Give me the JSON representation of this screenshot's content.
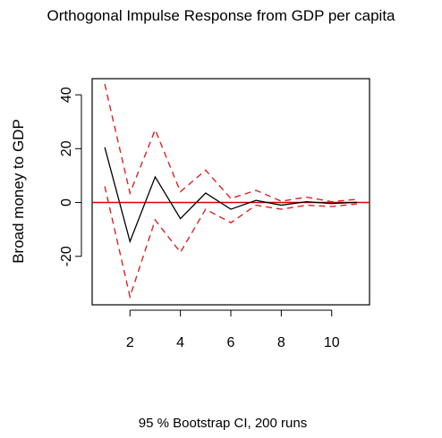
{
  "chart_data": {
    "type": "line",
    "title": "Orthogonal Impulse Response from GDP per capita",
    "ylabel": "Broad money to GDP",
    "xlabel": "",
    "subtitle": "95 % Bootstrap CI,  200 runs",
    "x": [
      1,
      2,
      3,
      4,
      5,
      6,
      7,
      8,
      9,
      10,
      11
    ],
    "xlim": [
      0.5,
      11.5
    ],
    "ylim": [
      -38,
      46
    ],
    "xticks": [
      2,
      4,
      6,
      8,
      10
    ],
    "yticks": [
      -20,
      0,
      20,
      40
    ],
    "grid": false,
    "legend": "none",
    "zero_line": {
      "value": 0,
      "color": "#dd0000"
    },
    "series": [
      {
        "role": "irf",
        "color": "#000000",
        "dash": "solid",
        "values": [
          20.5,
          -14.5,
          9.5,
          -6.0,
          3.5,
          -2.5,
          0.8,
          -1.0,
          0.3,
          -0.4,
          0.1
        ]
      },
      {
        "role": "upper",
        "color": "#dd2222",
        "dash": "dashed",
        "values": [
          44,
          3.5,
          27,
          4,
          12,
          1.5,
          4.5,
          0.5,
          2.0,
          0.3,
          1.2
        ]
      },
      {
        "role": "lower",
        "color": "#dd2222",
        "dash": "dashed",
        "values": [
          6,
          -35,
          -6.5,
          -18.5,
          -2.5,
          -7.5,
          -1.0,
          -2.5,
          -1.0,
          -1.5,
          -0.5
        ]
      }
    ]
  }
}
